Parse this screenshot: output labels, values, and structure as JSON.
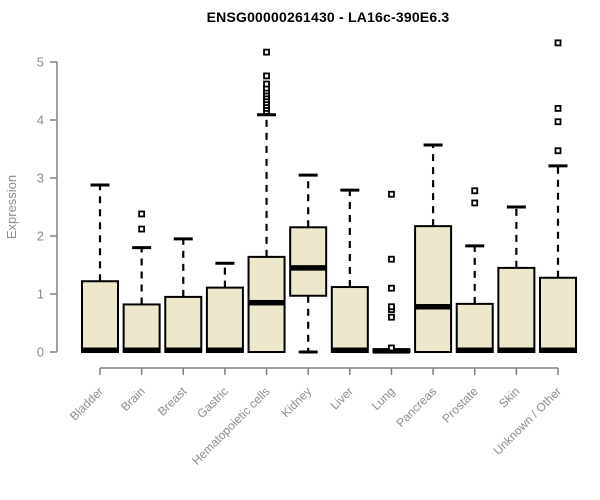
{
  "title": "ENSG00000261430 - LA16c-390E6.3",
  "colors": {
    "background": "#ffffff",
    "box_fill": "#EDE8CC",
    "box_border": "#000000",
    "median": "#000000",
    "axis": "#808080",
    "axis_text": "#8C8C8C",
    "title_text": "#000000",
    "outlier_fill": "#ffffff",
    "outlier_border": "#000000"
  },
  "chart_data": {
    "type": "boxplot",
    "title": "ENSG00000261430 - LA16c-390E6.3",
    "xlabel": "",
    "ylabel": "Expression",
    "ylim": [
      0,
      5
    ],
    "yticks": [
      0,
      1,
      2,
      3,
      4,
      5
    ],
    "grid": "off",
    "legend": "none",
    "categories": [
      "Bladder",
      "Brain",
      "Breast",
      "Gastric",
      "Hematopoietic cells",
      "Kidney",
      "Liver",
      "Lung",
      "Pancreas",
      "Prostate",
      "Skin",
      "Unknown / Other"
    ],
    "boxes": [
      {
        "category": "Bladder",
        "whisker_low": 0,
        "q1": 0,
        "median": 0.03,
        "q3": 1.22,
        "whisker_high": 2.88,
        "outliers": []
      },
      {
        "category": "Brain",
        "whisker_low": 0,
        "q1": 0,
        "median": 0.03,
        "q3": 0.82,
        "whisker_high": 1.8,
        "outliers": [
          2.12,
          2.38
        ]
      },
      {
        "category": "Breast",
        "whisker_low": 0,
        "q1": 0,
        "median": 0.03,
        "q3": 0.95,
        "whisker_high": 1.95,
        "outliers": []
      },
      {
        "category": "Gastric",
        "whisker_low": 0,
        "q1": 0,
        "median": 0.03,
        "q3": 1.11,
        "whisker_high": 1.53,
        "outliers": []
      },
      {
        "category": "Hematopoietic cells",
        "whisker_low": 0,
        "q1": 0,
        "median": 0.85,
        "q3": 1.64,
        "whisker_high": 4.09,
        "outliers": [
          4.15,
          4.2,
          4.25,
          4.3,
          4.35,
          4.4,
          4.45,
          4.5,
          4.55,
          4.62,
          4.76,
          5.17
        ]
      },
      {
        "category": "Kidney",
        "whisker_low": 0,
        "q1": 0.97,
        "median": 1.45,
        "q3": 2.15,
        "whisker_high": 3.05,
        "outliers": []
      },
      {
        "category": "Liver",
        "whisker_low": 0,
        "q1": 0,
        "median": 0.03,
        "q3": 1.12,
        "whisker_high": 2.79,
        "outliers": []
      },
      {
        "category": "Lung",
        "whisker_low": 0,
        "q1": 0,
        "median": 0.02,
        "q3": 0.04,
        "whisker_high": 0.04,
        "outliers": [
          0.07,
          0.6,
          0.73,
          0.78,
          1.1,
          1.6,
          2.72
        ]
      },
      {
        "category": "Pancreas",
        "whisker_low": 0,
        "q1": 0,
        "median": 0.78,
        "q3": 2.17,
        "whisker_high": 3.57,
        "outliers": []
      },
      {
        "category": "Prostate",
        "whisker_low": 0,
        "q1": 0,
        "median": 0.03,
        "q3": 0.83,
        "whisker_high": 1.83,
        "outliers": [
          2.57,
          2.78
        ]
      },
      {
        "category": "Skin",
        "whisker_low": 0,
        "q1": 0,
        "median": 0.03,
        "q3": 1.45,
        "whisker_high": 2.5,
        "outliers": []
      },
      {
        "category": "Unknown / Other",
        "whisker_low": 0,
        "q1": 0,
        "median": 0.03,
        "q3": 1.28,
        "whisker_high": 3.21,
        "outliers": [
          3.47,
          3.97,
          4.2,
          5.33
        ]
      }
    ]
  }
}
